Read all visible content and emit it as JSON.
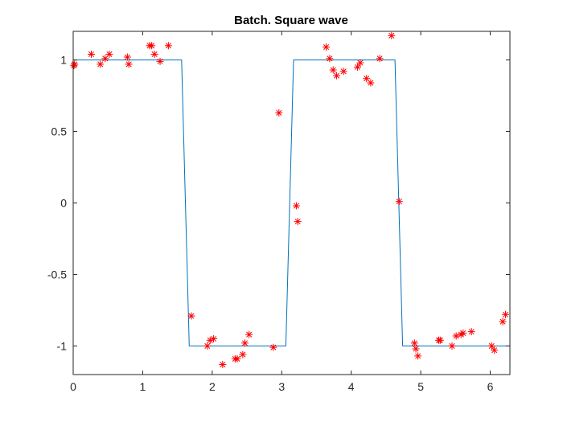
{
  "chart_data": {
    "type": "line",
    "title": "Batch. Square wave",
    "xlabel": "",
    "ylabel": "",
    "xlim": [
      0,
      6.2832
    ],
    "ylim": [
      -1.2,
      1.2
    ],
    "x_ticks": [
      0,
      1,
      2,
      3,
      4,
      5,
      6
    ],
    "x_tick_labels": [
      "0",
      "1",
      "2",
      "3",
      "4",
      "5",
      "6"
    ],
    "y_ticks": [
      1,
      0.5,
      0,
      -0.5,
      -1
    ],
    "y_tick_labels": [
      "1",
      "0.5",
      "0",
      "-0.5",
      "-1"
    ],
    "grid": false,
    "series": [
      {
        "type": "line",
        "color": "#0072bd",
        "x": [
          0,
          1.56,
          1.67,
          3.06,
          3.17,
          4.63,
          4.74,
          6.2832
        ],
        "y": [
          1,
          1,
          -1,
          -1,
          1,
          1,
          -1,
          -1
        ]
      },
      {
        "type": "scatter",
        "marker": "asterisk",
        "color": "#ff0000",
        "x": [
          0.01,
          0.02,
          0.26,
          0.39,
          0.46,
          0.52,
          0.78,
          0.8,
          1.1,
          1.13,
          1.17,
          1.25,
          1.37,
          1.7,
          1.93,
          1.97,
          2.02,
          2.15,
          2.33,
          2.36,
          2.44,
          2.47,
          2.53,
          2.88,
          2.96,
          3.21,
          3.23,
          3.64,
          3.69,
          3.74,
          3.79,
          3.89,
          4.09,
          4.13,
          4.22,
          4.28,
          4.41,
          4.58,
          4.69,
          4.91,
          4.93,
          4.96,
          5.26,
          5.28,
          5.45,
          5.51,
          5.58,
          5.61,
          5.73,
          6.02,
          6.06,
          6.18,
          6.22
        ],
        "y": [
          0.96,
          0.97,
          1.04,
          0.97,
          1.01,
          1.04,
          1.02,
          0.97,
          1.1,
          1.1,
          1.04,
          0.99,
          1.1,
          -0.79,
          -1.0,
          -0.96,
          -0.95,
          -1.13,
          -1.09,
          -1.09,
          -1.06,
          -0.98,
          -0.92,
          -1.01,
          0.63,
          -0.02,
          -0.13,
          1.09,
          1.01,
          0.93,
          0.89,
          0.92,
          0.95,
          0.98,
          0.87,
          0.84,
          1.01,
          1.17,
          0.01,
          -0.98,
          -1.02,
          -1.07,
          -0.96,
          -0.96,
          -1.0,
          -0.93,
          -0.92,
          -0.91,
          -0.9,
          -1.0,
          -1.03,
          -0.83,
          -0.78
        ]
      }
    ]
  }
}
